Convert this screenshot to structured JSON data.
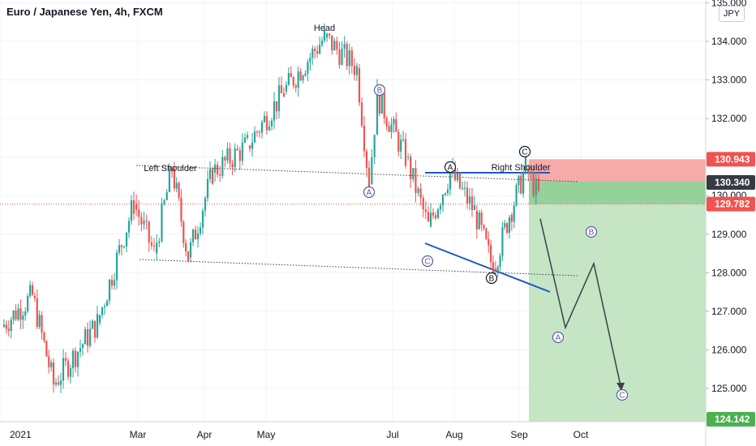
{
  "title": "Euro / Japanese Yen, 4h, FXCM",
  "currency_button": "JPY",
  "colors": {
    "up": "#26a69a",
    "down": "#ef5350",
    "stop_zone": "#f6a6a3",
    "target_zone": "#c2e4c2",
    "entry_zone": "#88cc90",
    "trend_line": "#1e58c5",
    "projection": "#3c3f48",
    "price_label_red": "#f05350",
    "price_label_dark": "#363a45",
    "price_label_green": "#4caf50"
  },
  "chart_data": {
    "type": "candlestick",
    "title": "Euro / Japanese Yen, 4h, FXCM",
    "x_ticks": [
      "2021",
      "Mar",
      "Apr",
      "May",
      "Jul",
      "Aug",
      "Sep",
      "Oct"
    ],
    "y_ticks": [
      "125.000",
      "126.000",
      "127.000",
      "128.000",
      "129.000",
      "130.000",
      "131.000",
      "132.000",
      "133.000",
      "134.000",
      "135.000"
    ],
    "ylim": [
      123.9,
      135.1
    ],
    "price_levels": {
      "stop": "130.943",
      "current": "130.340",
      "entry": "129.782",
      "target": "124.142"
    },
    "swing_path": [
      [
        "2021",
        126.6
      ],
      [
        "Jan",
        127.4
      ],
      [
        "Jan",
        125.1
      ],
      [
        "Feb",
        126.7
      ],
      [
        "Mar",
        129.8
      ],
      [
        "Mar",
        128.5
      ],
      [
        "Mar",
        130.7
      ],
      [
        "Apr",
        128.4
      ],
      [
        "Apr",
        130.6
      ],
      [
        "May",
        131.3
      ],
      [
        "May",
        132.7
      ],
      [
        "Jun",
        134.1
      ],
      [
        "Jun",
        133.3
      ],
      [
        "Jun",
        130.3
      ],
      [
        "Jun",
        132.6
      ],
      [
        "Jul",
        131.0
      ],
      [
        "Jul",
        129.2
      ],
      [
        "Jul",
        130.6
      ],
      [
        "Aug",
        129.6
      ],
      [
        "Aug",
        128.1
      ],
      [
        "Sep",
        129.5
      ],
      [
        "Sep",
        130.7
      ],
      [
        "Sep",
        130.0
      ]
    ],
    "annotations": {
      "head": "Head",
      "left_shoulder": "Left Shoulder",
      "right_shoulder": "Right Shoulder"
    },
    "wave_labels": [
      "A",
      "B",
      "C",
      "A",
      "B",
      "C",
      "A",
      "B",
      "C"
    ],
    "projection_path": [
      [
        "Sep",
        129.4
      ],
      [
        "Sep",
        126.5
      ],
      [
        "Oct",
        128.2
      ],
      [
        "Oct",
        125.0
      ]
    ]
  }
}
